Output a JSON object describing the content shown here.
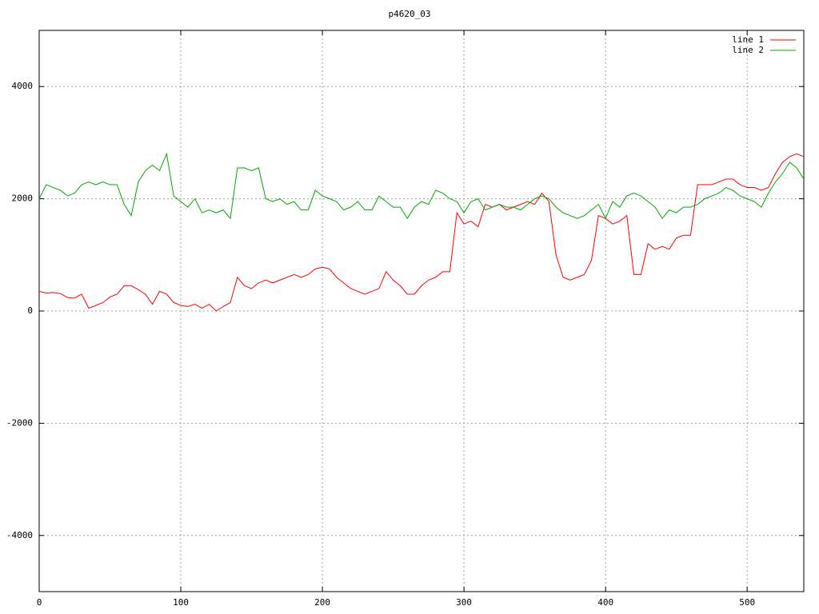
{
  "chart_data": {
    "type": "line",
    "title": "p4620_03",
    "x": [
      0,
      5,
      10,
      15,
      20,
      25,
      30,
      35,
      40,
      45,
      50,
      55,
      60,
      65,
      70,
      75,
      80,
      85,
      90,
      95,
      100,
      105,
      110,
      115,
      120,
      125,
      130,
      135,
      140,
      145,
      150,
      155,
      160,
      165,
      170,
      175,
      180,
      185,
      190,
      195,
      200,
      205,
      210,
      215,
      220,
      225,
      230,
      235,
      240,
      245,
      250,
      255,
      260,
      265,
      270,
      275,
      280,
      285,
      290,
      295,
      300,
      305,
      310,
      315,
      320,
      325,
      330,
      335,
      340,
      345,
      350,
      355,
      360,
      365,
      370,
      375,
      380,
      385,
      390,
      395,
      400,
      405,
      410,
      415,
      420,
      425,
      430,
      435,
      440,
      445,
      450,
      455,
      460,
      465,
      470,
      475,
      480,
      485,
      490,
      495,
      500,
      505,
      510,
      515,
      520,
      525,
      530,
      535,
      540
    ],
    "series": [
      {
        "name": "line 1",
        "color": "#ff0000",
        "values": [
          350,
          320,
          330,
          310,
          240,
          230,
          300,
          50,
          100,
          150,
          250,
          300,
          450,
          450,
          380,
          300,
          120,
          350,
          300,
          150,
          100,
          80,
          120,
          50,
          120,
          0,
          80,
          150,
          600,
          450,
          400,
          500,
          550,
          500,
          550,
          600,
          650,
          600,
          650,
          750,
          780,
          750,
          600,
          500,
          400,
          350,
          300,
          350,
          400,
          700,
          550,
          450,
          300,
          300,
          450,
          550,
          600,
          700,
          700,
          1750,
          1550,
          1600,
          1500,
          1900,
          1850,
          1900,
          1800,
          1850,
          1900,
          1950,
          1900,
          2100,
          1950,
          1000,
          600,
          550,
          600,
          650,
          900,
          1700,
          1650,
          1550,
          1600,
          1700,
          650,
          650,
          1200,
          1100,
          1150,
          1100,
          1300,
          1350,
          1350,
          2250,
          2250,
          2250,
          2300,
          2350,
          2350,
          2250,
          2200,
          2200,
          2150,
          2200,
          2450,
          2650,
          2750,
          2800,
          2750
        ]
      },
      {
        "name": "line 2",
        "color": "#00aa00",
        "values": [
          2000,
          2250,
          2200,
          2150,
          2050,
          2100,
          2250,
          2300,
          2250,
          2300,
          2250,
          2250,
          1900,
          1700,
          2300,
          2500,
          2600,
          2500,
          2800,
          2050,
          1950,
          1850,
          2000,
          1750,
          1800,
          1750,
          1800,
          1650,
          2550,
          2550,
          2500,
          2550,
          2000,
          1950,
          2000,
          1900,
          1950,
          1800,
          1800,
          2150,
          2050,
          2000,
          1950,
          1800,
          1850,
          1950,
          1800,
          1800,
          2050,
          1950,
          1850,
          1850,
          1650,
          1850,
          1950,
          1900,
          2150,
          2100,
          2000,
          1950,
          1750,
          1950,
          2000,
          1800,
          1850,
          1900,
          1850,
          1850,
          1800,
          1900,
          2000,
          2050,
          2000,
          1850,
          1750,
          1700,
          1650,
          1700,
          1800,
          1900,
          1650,
          1950,
          1850,
          2050,
          2100,
          2050,
          1950,
          1850,
          1650,
          1800,
          1750,
          1850,
          1850,
          1900,
          2000,
          2050,
          2100,
          2200,
          2150,
          2050,
          2000,
          1950,
          1850,
          2100,
          2300,
          2450,
          2650,
          2550,
          2350
        ]
      }
    ],
    "xlim": [
      0,
      540
    ],
    "xticks": [
      0,
      100,
      200,
      300,
      400,
      500
    ],
    "ylim": [
      -5000,
      5000
    ],
    "yticks": [
      -4000,
      -2000,
      0,
      2000,
      4000
    ],
    "grid": true,
    "legend": "top-right"
  }
}
